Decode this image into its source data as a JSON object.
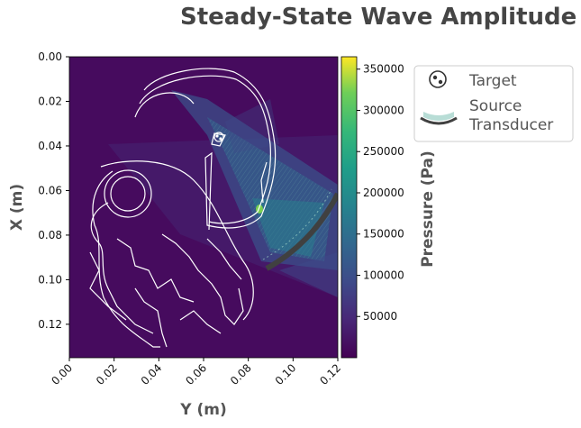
{
  "chart_data": {
    "type": "heatmap",
    "title": "Steady-State Wave Amplitude",
    "xlabel": "Y (m)",
    "ylabel": "X (m)",
    "xlim": [
      0.0,
      0.12
    ],
    "ylim": [
      0.0,
      0.135
    ],
    "x_ticks": [
      "0.00",
      "0.02",
      "0.04",
      "0.06",
      "0.08",
      "0.10",
      "0.12"
    ],
    "y_ticks": [
      "0.00",
      "0.02",
      "0.04",
      "0.06",
      "0.08",
      "0.10",
      "0.12"
    ],
    "colorbar": {
      "label": "Pressure (Pa)",
      "range": [
        0,
        365000
      ],
      "ticks": [
        "50000",
        "100000",
        "150000",
        "200000",
        "250000",
        "300000",
        "350000"
      ],
      "colormap": "viridis"
    },
    "target": {
      "y": 0.067,
      "x": 0.036
    },
    "source_arc": {
      "y_start": 0.088,
      "x_start": 0.095,
      "y_end": 0.12,
      "x_end": 0.061
    },
    "focus_peak": {
      "y": 0.086,
      "x": 0.068,
      "pressure": 300000
    },
    "legend": {
      "position": "upper right outside",
      "entries": [
        {
          "label": "Target",
          "marker": "target-icon"
        },
        {
          "label": "Source\nTransducer",
          "marker": "transducer-arc"
        }
      ]
    }
  },
  "colors": {
    "background_field": "#440154",
    "beam": "#2c6e8e",
    "skull_outline": "#ffffff",
    "transducer": "#404040"
  }
}
